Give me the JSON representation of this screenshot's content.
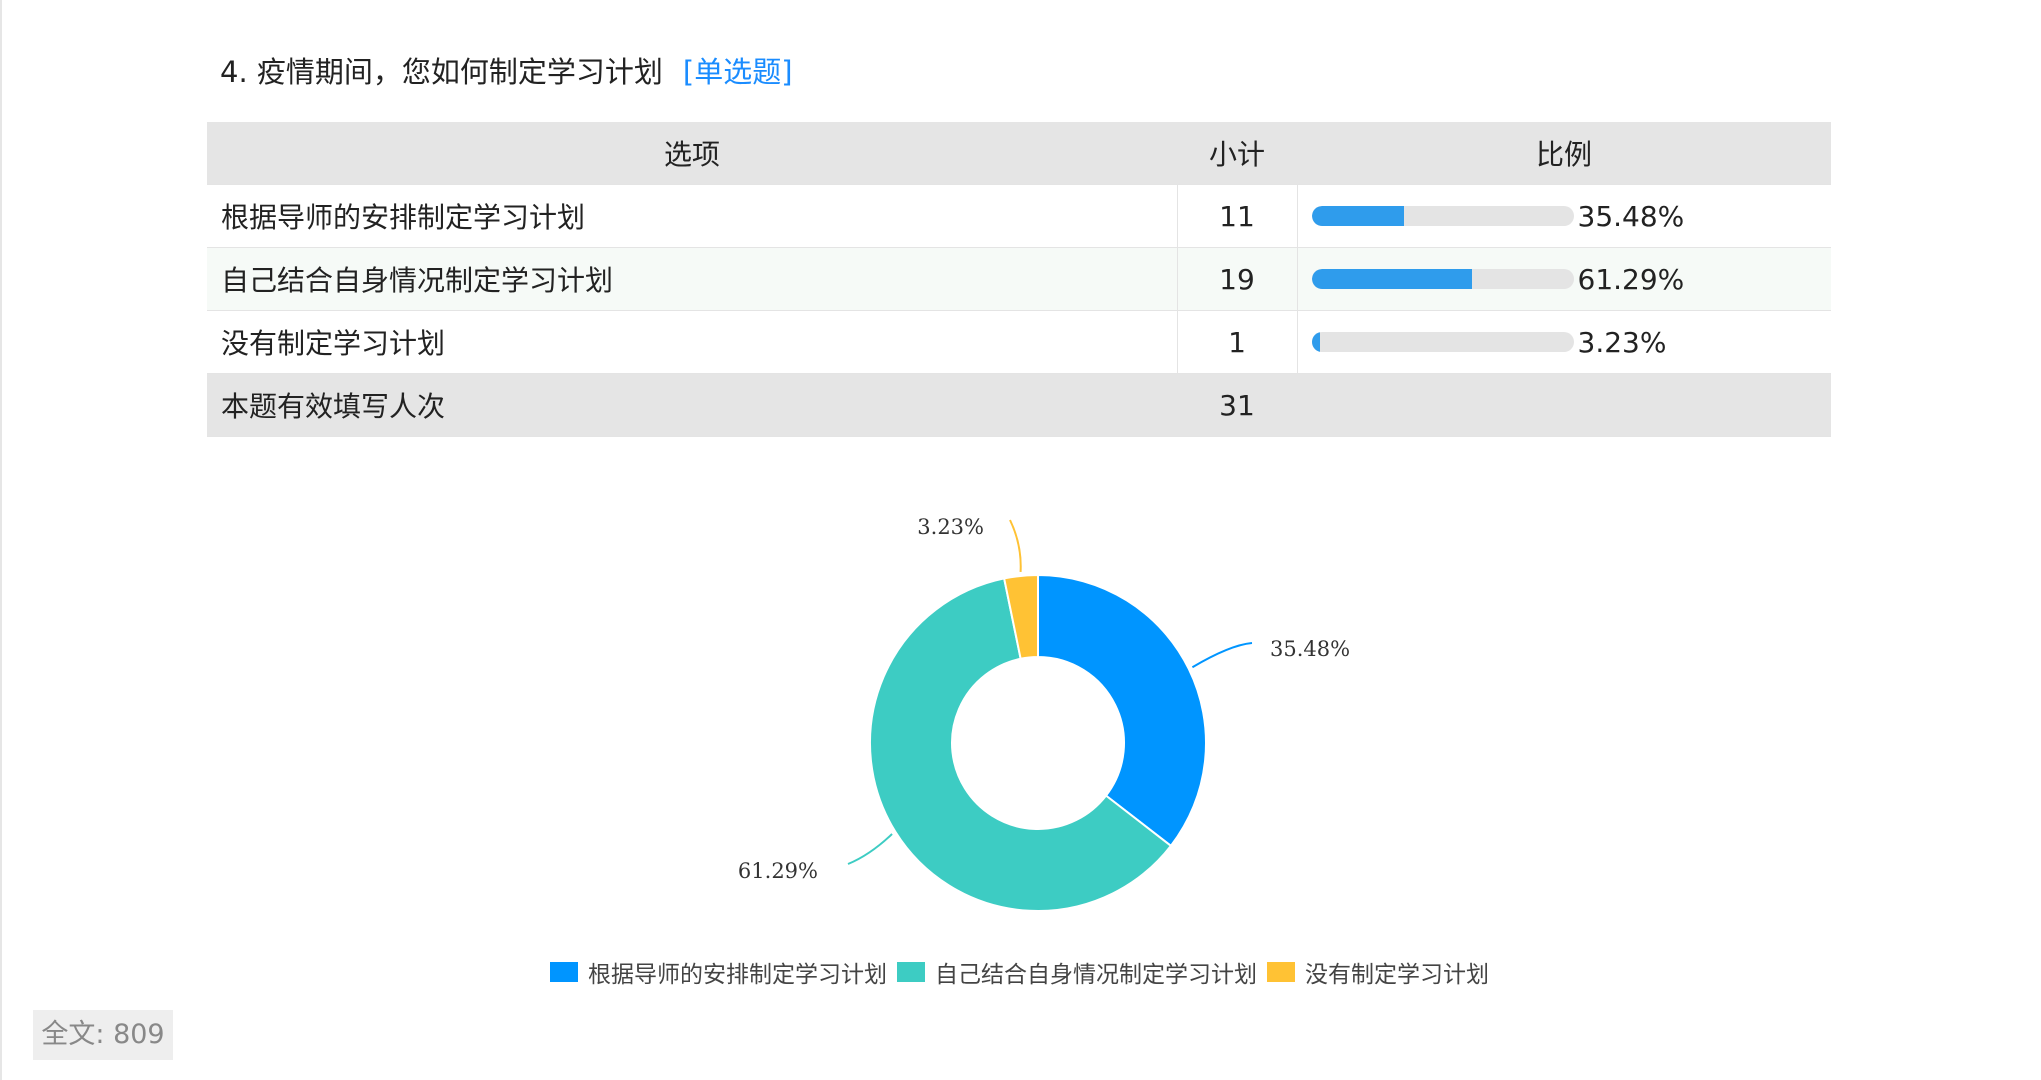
{
  "question": {
    "title": "4. 疫情期间，您如何制定学习计划",
    "type": "[单选题]"
  },
  "table": {
    "headers": {
      "option": "选项",
      "count": "小计",
      "ratio": "比例"
    },
    "rows": [
      {
        "option": "根据导师的安排制定学习计划",
        "count": "11",
        "percent": "35.48%",
        "fraction": 0.3548
      },
      {
        "option": "自己结合自身情况制定学习计划",
        "count": "19",
        "percent": "61.29%",
        "fraction": 0.6129
      },
      {
        "option": "没有制定学习计划",
        "count": "1",
        "percent": "3.23%",
        "fraction": 0.0323
      }
    ],
    "total": {
      "label": "本题有效填写人次",
      "count": "31"
    }
  },
  "chart_data": {
    "type": "pie",
    "donut": true,
    "categories": [
      "根据导师的安排制定学习计划",
      "自己结合自身情况制定学习计划",
      "没有制定学习计划"
    ],
    "values": [
      35.48,
      61.29,
      3.23
    ],
    "labels": [
      "35.48%",
      "61.29%",
      "3.23%"
    ],
    "colors": [
      "#0095ff",
      "#3dccc3",
      "#ffc234"
    ],
    "legend_position": "bottom"
  },
  "footer": {
    "word_count": "全文: 809"
  }
}
